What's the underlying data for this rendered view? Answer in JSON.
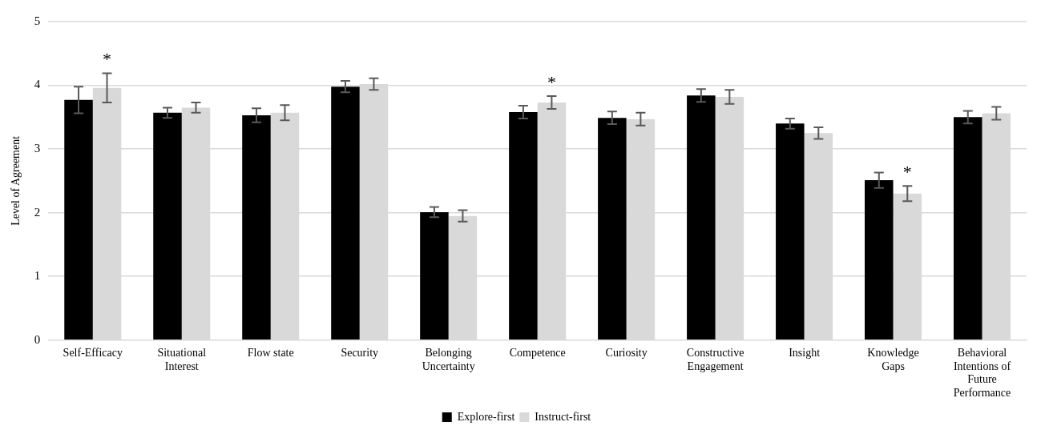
{
  "chart_data": {
    "type": "bar",
    "ylabel": "Level of Agreement",
    "categories": [
      "Self-Efficacy",
      "Situational Interest",
      "Flow state",
      "Security",
      "Belonging Uncertainty",
      "Competence",
      "Curiosity",
      "Constructive Engagement",
      "Insight",
      "Knowledge Gaps",
      "Behavioral Intentions of Future Performance"
    ],
    "series": [
      {
        "name": "Explore-first",
        "color": "#000000",
        "values": [
          3.77,
          3.57,
          3.53,
          3.98,
          2.01,
          3.58,
          3.49,
          3.84,
          3.4,
          2.51,
          3.5
        ],
        "errors": [
          0.21,
          0.08,
          0.11,
          0.09,
          0.08,
          0.1,
          0.1,
          0.1,
          0.08,
          0.12,
          0.1
        ]
      },
      {
        "name": "Instruct-first",
        "color": "#d9d9d9",
        "values": [
          3.96,
          3.65,
          3.57,
          4.02,
          1.95,
          3.73,
          3.47,
          3.82,
          3.25,
          2.3,
          3.56
        ],
        "errors": [
          0.23,
          0.08,
          0.12,
          0.09,
          0.09,
          0.1,
          0.1,
          0.11,
          0.09,
          0.12,
          0.1
        ],
        "value_labels": [
          "*",
          null,
          null,
          null,
          null,
          "*",
          null,
          null,
          null,
          "*",
          null
        ]
      }
    ],
    "ylim": [
      0,
      5
    ],
    "yticks": [
      0,
      1,
      2,
      3,
      4,
      5
    ],
    "grid": "y",
    "legend": "bottom"
  }
}
